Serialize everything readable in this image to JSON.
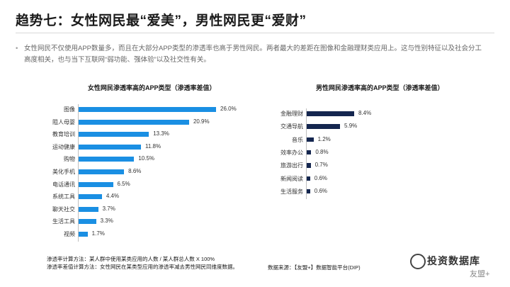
{
  "page": {
    "title": "趋势七：女性网民最“爱美”，男性网民更“爱财”",
    "bullet": "女性网民不仅使用APP数量多，而且在大部分APP类型的渗透率也高于男性网民。两者最大的差距在图像和金融理财类应用上。这与性别特征以及社会分工高度相关，也与当下互联网“弱功能、强体验”以及社交性有关。",
    "note_line1": "渗透率计算方法：某人群中使用某类应用的人数 / 某人群总人数 X 100%",
    "note_line2": "渗透率差值计算方法：女性网民在某类型应用的渗透率减去男性网民同维度数据。",
    "source": "数据来源：【友盟+】数据智能平台(DIP)",
    "watermark_text": "投资数据库",
    "watermark_logo_text": "友盟+"
  },
  "colors": {
    "female_bar": "#1a8fe3",
    "male_bar": "#14264f"
  },
  "chart_data": [
    {
      "type": "bar",
      "orientation": "horizontal",
      "title": "女性网民渗透率高的APP类型（渗透率差值）",
      "categories": [
        "图像",
        "阻人母婴",
        "教育培训",
        "运动健康",
        "购物",
        "美化手机",
        "电话通讯",
        "系统工具",
        "聊天社交",
        "生活工具",
        "视频"
      ],
      "values": [
        26.0,
        20.9,
        13.3,
        11.8,
        10.5,
        8.6,
        6.5,
        4.4,
        3.7,
        3.3,
        1.7
      ],
      "value_labels": [
        "26.0%",
        "20.9%",
        "13.3%",
        "11.8%",
        "10.5%",
        "8.6%",
        "6.5%",
        "4.4%",
        "3.7%",
        "3.3%",
        "1.7%"
      ],
      "unit": "%",
      "xlim": [
        0,
        26
      ],
      "color": "#1a8fe3",
      "grid": false
    },
    {
      "type": "bar",
      "orientation": "horizontal",
      "title": "男性网民渗透率高的APP类型（渗透率差值）",
      "categories": [
        "金融理财",
        "交通导航",
        "音乐",
        "效率办公",
        "旅游出行",
        "新闻阅读",
        "生活服务"
      ],
      "values": [
        8.4,
        5.9,
        1.2,
        0.8,
        0.7,
        0.6,
        0.6
      ],
      "value_labels": [
        "8.4%",
        "5.9%",
        "1.2%",
        "0.8%",
        "0.7%",
        "0.6%",
        "0.6%"
      ],
      "unit": "%",
      "xlim": [
        0,
        8.4
      ],
      "color": "#14264f",
      "grid": false
    }
  ]
}
